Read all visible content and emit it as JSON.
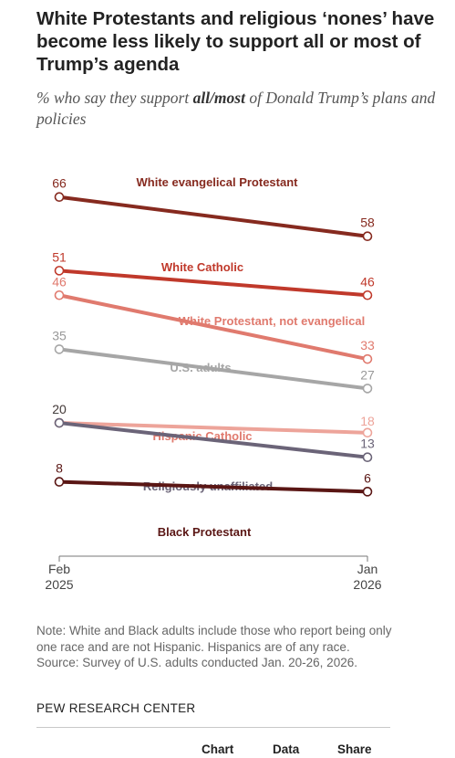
{
  "header": {
    "title": "White Protestants and religious ‘nones’ have become less likely to support all or most of Trump’s agenda",
    "subtitle_pre": "% who say they support ",
    "subtitle_bold": "all/most",
    "subtitle_post": " of Donald Trump’s plans and policies"
  },
  "chart_data": {
    "type": "line",
    "x": [
      "Feb 2025",
      "Jan 2026"
    ],
    "x_tick_labels": [
      [
        "Feb",
        "2025"
      ],
      [
        "Jan",
        "2026"
      ]
    ],
    "grid": false,
    "legend": "none (series labeled directly on lines)",
    "series": [
      {
        "name": "White evangelical Protestant",
        "values": [
          66,
          58
        ],
        "color": "#862a1f"
      },
      {
        "name": "White Catholic",
        "values": [
          51,
          46
        ],
        "color": "#c0392b"
      },
      {
        "name": "White Protestant, not evangelical",
        "values": [
          46,
          33
        ],
        "color": "#e07a6e"
      },
      {
        "name": "U.S. adults",
        "values": [
          35,
          27
        ],
        "color": "#a6a6a6"
      },
      {
        "name": "Hispanic Catholic",
        "values": [
          20,
          18
        ],
        "color": "#eda49a"
      },
      {
        "name": "Religiously unaffiliated",
        "values": [
          20,
          13
        ],
        "color": "#6b6478"
      },
      {
        "name": "Black Protestant",
        "values": [
          8,
          6
        ],
        "color": "#5a1614"
      }
    ]
  },
  "notes": {
    "note": "Note: White and Black adults include those who report being only one race and are not Hispanic. Hispanics are of any race.",
    "source": "Source: Survey of U.S. adults conducted Jan. 20-26, 2026."
  },
  "brand": "PEW RESEARCH CENTER",
  "tabs": [
    "Chart",
    "Data",
    "Share"
  ]
}
